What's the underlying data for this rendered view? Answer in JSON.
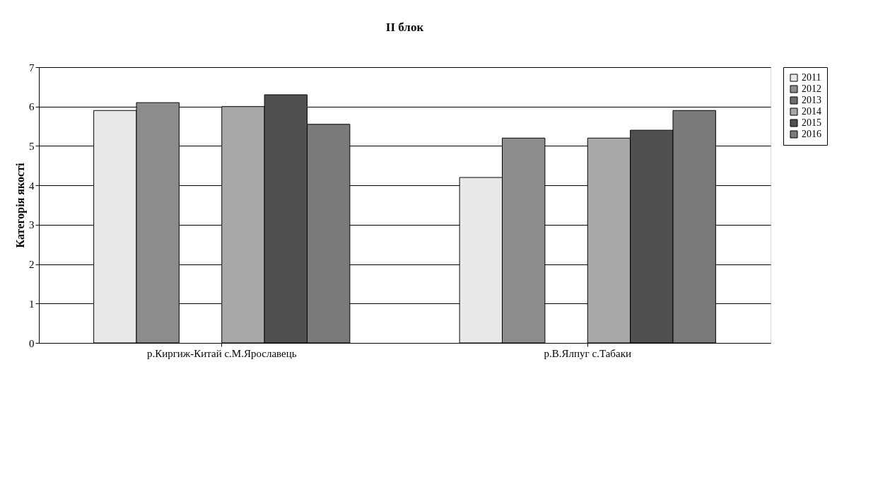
{
  "chart_data": {
    "type": "bar",
    "title": "II блок",
    "ylabel": "Категорія якості",
    "categories": [
      "р.Киргиж-Китай с.М.Ярославець",
      "р.В.Ялпуг с.Табаки"
    ],
    "series": [
      {
        "name": "2011",
        "color": "#e8e8e8",
        "values": [
          5.9,
          4.2
        ]
      },
      {
        "name": "2012",
        "color": "#8c8c8c",
        "values": [
          6.1,
          5.2
        ]
      },
      {
        "name": "2013",
        "color": "#6e6e6e",
        "values": [
          null,
          null
        ]
      },
      {
        "name": "2014",
        "color": "#a8a8a8",
        "values": [
          6.0,
          5.2
        ]
      },
      {
        "name": "2015",
        "color": "#505050",
        "values": [
          6.3,
          5.4
        ]
      },
      {
        "name": "2016",
        "color": "#7a7a7a",
        "values": [
          5.55,
          5.9
        ]
      }
    ],
    "ylim": [
      0,
      7
    ],
    "yticks": [
      0,
      1,
      2,
      3,
      4,
      5,
      6,
      7
    ],
    "grid": "y",
    "legend": "right"
  }
}
